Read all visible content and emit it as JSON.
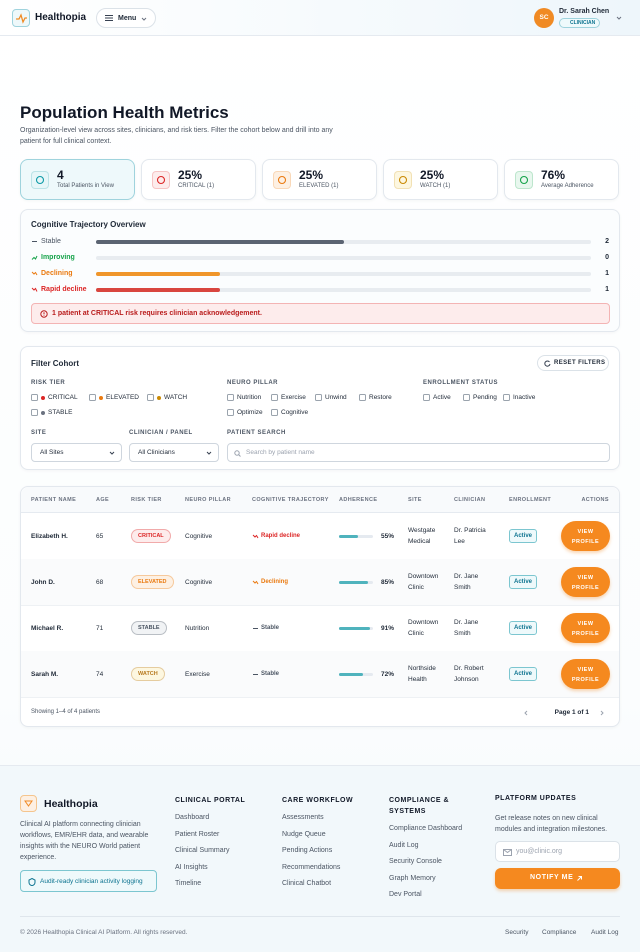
{
  "header": {
    "brand": "Healthopia",
    "menu": "Menu",
    "user_initials": "SC",
    "user_name": "Dr. Sarah Chen",
    "user_role": "CLINICIAN"
  },
  "page": {
    "title": "Population Health Metrics",
    "subtitle": "Organization-level view across sites, clinicians, and risk tiers. Filter the cohort below and drill into any patient for full clinical context."
  },
  "kpis": [
    {
      "value": "4",
      "label": "Total Patients in View"
    },
    {
      "value": "25%",
      "label": "CRITICAL (1)"
    },
    {
      "value": "25%",
      "label": "ELEVATED (1)"
    },
    {
      "value": "25%",
      "label": "WATCH (1)"
    },
    {
      "value": "76%",
      "label": "Average Adherence"
    }
  ],
  "trajectory": {
    "title": "Cognitive Trajectory Overview",
    "rows": [
      {
        "label": "Stable",
        "count": 2
      },
      {
        "label": "Improving",
        "count": 0
      },
      {
        "label": "Declining",
        "count": 1
      },
      {
        "label": "Rapid decline",
        "count": 1
      }
    ],
    "alert": "1 patient at CRITICAL risk requires clinician acknowledgement."
  },
  "filters": {
    "title": "Filter Cohort",
    "reset": "RESET FILTERS",
    "risk_tier": {
      "label": "RISK TIER",
      "options": [
        "CRITICAL",
        "ELEVATED",
        "WATCH",
        "STABLE"
      ]
    },
    "neuro_pillar": {
      "label": "NEURO PILLAR",
      "options": [
        "Nutrition",
        "Exercise",
        "Unwind",
        "Restore",
        "Optimize",
        "Cognitive"
      ]
    },
    "enrollment": {
      "label": "ENROLLMENT STATUS",
      "options": [
        "Active",
        "Pending",
        "Inactive"
      ]
    },
    "site": {
      "label": "SITE",
      "value": "All Sites"
    },
    "clinician": {
      "label": "CLINICIAN / PANEL",
      "value": "All Clinicians"
    },
    "search": {
      "label": "PATIENT SEARCH",
      "placeholder": "Search by patient name"
    }
  },
  "table": {
    "columns": [
      "PATIENT NAME",
      "AGE",
      "RISK TIER",
      "NEURO PILLAR",
      "COGNITIVE TRAJECTORY",
      "ADHERENCE",
      "SITE",
      "CLINICIAN",
      "ENROLLMENT",
      "ACTIONS"
    ],
    "rows": [
      [
        "Elizabeth H.",
        65,
        "CRITICAL",
        "Cognitive",
        "Rapid decline",
        "55%",
        "Westgate Medical",
        "Dr. Patricia Lee",
        "Active",
        "VIEW PROFILE"
      ],
      [
        "John D.",
        68,
        "ELEVATED",
        "Cognitive",
        "Declining",
        "85%",
        "Downtown Clinic",
        "Dr. Jane Smith",
        "Active",
        "VIEW PROFILE"
      ],
      [
        "Michael R.",
        71,
        "STABLE",
        "Nutrition",
        "Stable",
        "91%",
        "Downtown Clinic",
        "Dr. Jane Smith",
        "Active",
        "VIEW PROFILE"
      ],
      [
        "Sarah M.",
        74,
        "WATCH",
        "Exercise",
        "Stable",
        "72%",
        "Northside Health",
        "Dr. Robert Johnson",
        "Active",
        "VIEW PROFILE"
      ]
    ],
    "summary": "Showing 1–4 of 4 patients",
    "pagination": "Page 1 of 1"
  },
  "footer": {
    "brand": "Healthopia",
    "description": "Clinical AI platform connecting clinician workflows, EMR/EHR data, and wearable insights with the NEURO World patient experience.",
    "badge": "Audit-ready clinician activity logging",
    "columns": [
      {
        "title": "CLINICAL PORTAL",
        "links": [
          "Dashboard",
          "Patient Roster",
          "Clinical Summary",
          "AI Insights",
          "Timeline"
        ]
      },
      {
        "title": "CARE WORKFLOW",
        "links": [
          "Assessments",
          "Nudge Queue",
          "Pending Actions",
          "Recommendations",
          "Clinical Chatbot"
        ]
      },
      {
        "title": "COMPLIANCE & SYSTEMS",
        "links": [
          "Compliance Dashboard",
          "Audit Log",
          "Security Console",
          "Graph Memory",
          "Dev Portal"
        ]
      }
    ],
    "updates": {
      "title": "PLATFORM UPDATES",
      "text": "Get release notes on new clinical modules and integration milestones.",
      "placeholder": "you@clinic.org",
      "button": "NOTIFY ME"
    },
    "copyright": "© 2026 Healthopia Clinical AI Platform. All rights reserved.",
    "legal": [
      "Security",
      "Compliance",
      "Audit Log"
    ]
  }
}
